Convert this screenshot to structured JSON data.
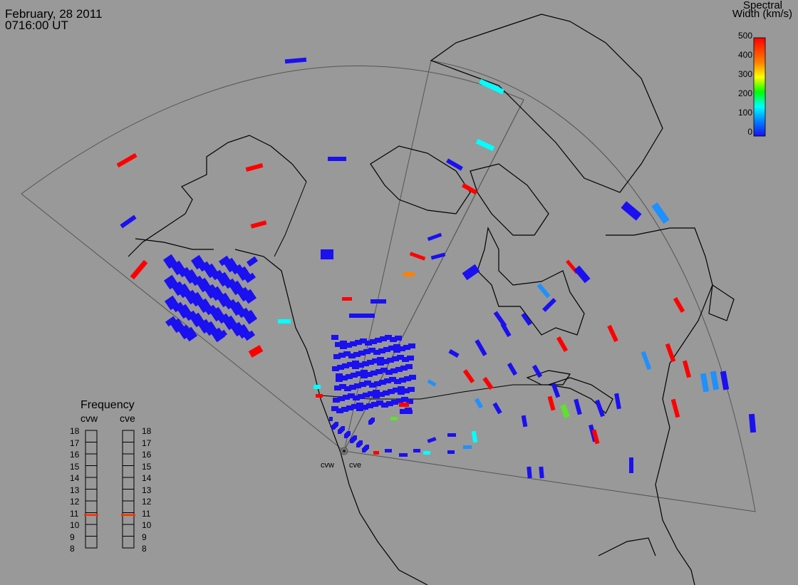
{
  "header": {
    "date": "February, 28 2011",
    "time": "0716:00 UT"
  },
  "colorbar": {
    "title_line1": "Spectral",
    "title_line2": "Width (km/s)",
    "ticks": [
      "500",
      "400",
      "300",
      "200",
      "100",
      "0"
    ],
    "colors": [
      "#ff0000",
      "#ff8000",
      "#ffff00",
      "#00ff00",
      "#00ffff",
      "#0080ff",
      "#0000ff"
    ]
  },
  "frequency_legend": {
    "title": "Frequency",
    "radar_left": "cvw",
    "radar_right": "cve",
    "levels": [
      "18",
      "17",
      "16",
      "15",
      "14",
      "13",
      "12",
      "11",
      "10",
      "9",
      "8"
    ],
    "cvw_frequency": 10.8,
    "cve_frequency": 10.8
  },
  "radars": {
    "west_label": "cvw",
    "east_label": "cve"
  },
  "colors": {
    "background": "#999999",
    "coastline": "#000000",
    "fov_outline": "#555555",
    "echo_low": "#1a10f0",
    "echo_mid": "#00ffff",
    "echo_high": "#ff0000",
    "freq_marker": "#ff3000"
  }
}
